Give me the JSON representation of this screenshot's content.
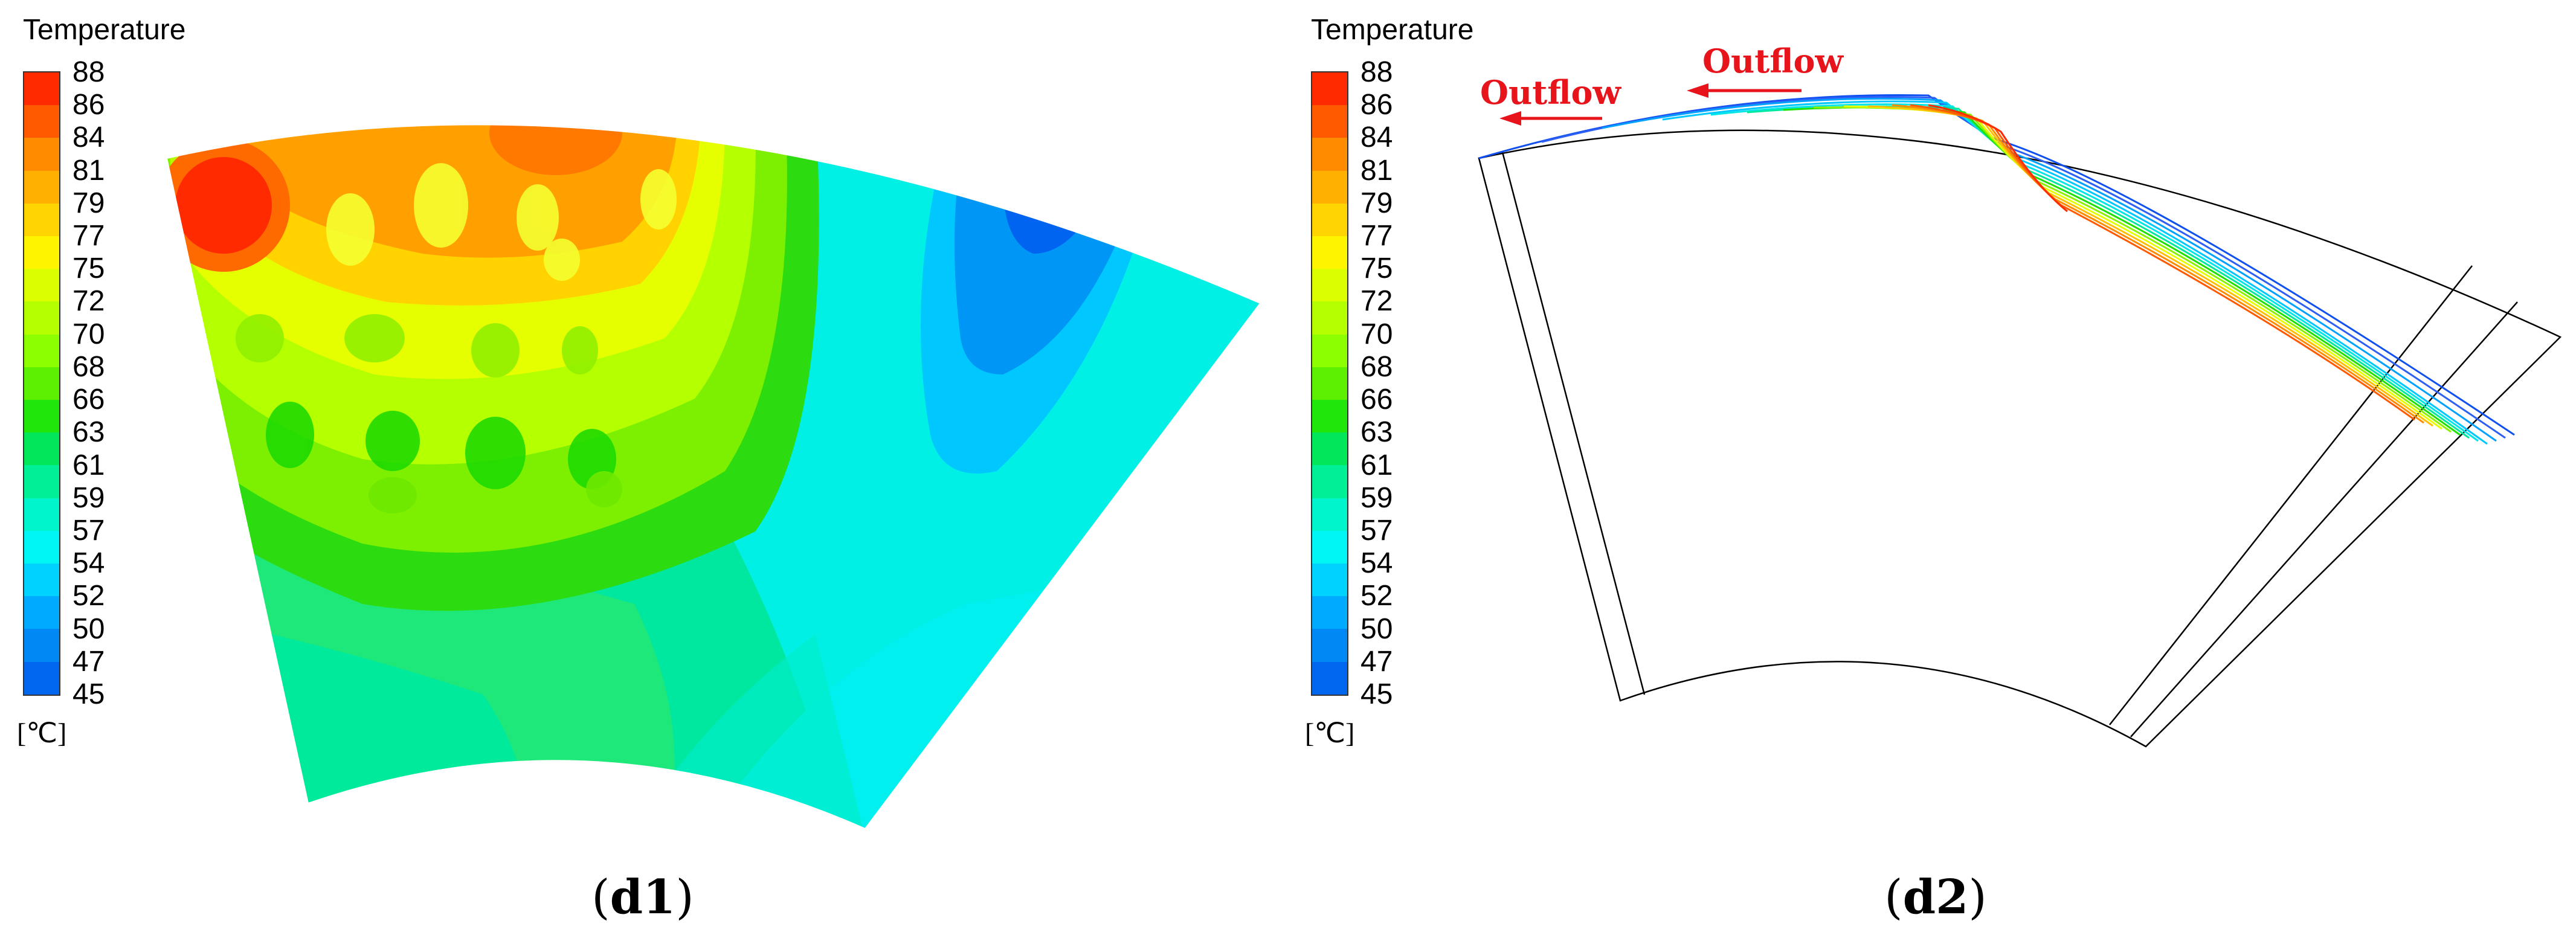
{
  "panels": [
    {
      "id": "d1",
      "legend_title": "Temperature",
      "unit": "[℃]",
      "caption_letter": "d1"
    },
    {
      "id": "d2",
      "legend_title": "Temperature",
      "unit": "[℃]",
      "caption_letter": "d2",
      "annotations": [
        "Outflow",
        "Outflow"
      ]
    }
  ],
  "colorbar": {
    "ticks": [
      "88",
      "86",
      "84",
      "81",
      "79",
      "77",
      "75",
      "72",
      "70",
      "68",
      "66",
      "63",
      "61",
      "59",
      "57",
      "54",
      "52",
      "50",
      "47",
      "45"
    ],
    "colors": [
      "#ff2a00",
      "#ff5a00",
      "#ff8c00",
      "#ffb000",
      "#ffd400",
      "#fff400",
      "#dcff00",
      "#b4ff00",
      "#8cff00",
      "#5cf000",
      "#20e60a",
      "#00e85a",
      "#00f096",
      "#00f5cc",
      "#00f5f5",
      "#00d2ff",
      "#00aaff",
      "#0088f5",
      "#0066ee",
      "#0a2ef0"
    ]
  },
  "temperature_range": [
    45,
    88
  ]
}
